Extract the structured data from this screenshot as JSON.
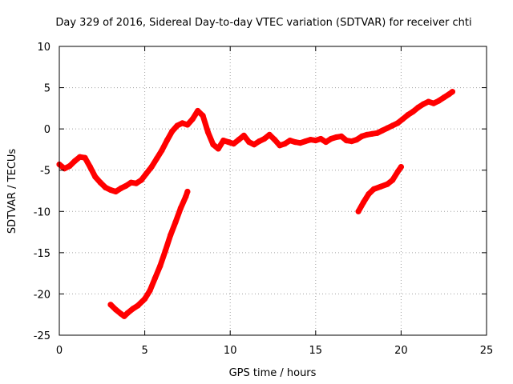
{
  "chart_data": {
    "type": "line",
    "title": "Day 329 of 2016, Sidereal Day-to-day VTEC variation (SDTVAR) for receiver chti",
    "xlabel": "GPS time / hours",
    "ylabel": "SDTVAR / TECUs",
    "xlim": [
      0,
      25
    ],
    "ylim": [
      -25,
      10
    ],
    "xticks": [
      0,
      5,
      10,
      15,
      20,
      25
    ],
    "yticks": [
      -25,
      -20,
      -15,
      -10,
      -5,
      0,
      5,
      10
    ],
    "grid": true,
    "series_color": "#ff0000",
    "series": [
      {
        "name": "segment-1",
        "x": [
          0,
          0.3,
          0.6,
          0.9,
          1.2,
          1.5,
          1.8,
          2.1,
          2.4,
          2.7,
          3.0,
          3.3,
          3.6,
          3.9,
          4.2,
          4.5,
          4.8,
          5.1,
          5.4,
          5.7,
          6.0,
          6.3,
          6.6,
          6.9,
          7.2,
          7.5,
          7.8,
          8.1,
          8.4,
          8.7,
          9.0,
          9.3,
          9.6,
          9.9,
          10.2,
          10.5,
          10.8,
          11.1,
          11.4,
          11.7,
          12.0,
          12.3,
          12.6,
          12.9,
          13.2,
          13.5,
          13.8,
          14.1,
          14.4,
          14.7,
          15.0,
          15.3,
          15.6,
          15.9,
          16.2,
          16.5,
          16.8,
          17.1,
          17.4,
          17.7,
          18.0,
          18.3,
          18.6,
          18.9,
          19.2,
          19.5,
          19.8,
          20.1,
          20.4,
          20.7,
          21.0,
          21.3,
          21.6,
          21.9,
          22.2,
          22.5,
          22.8,
          23.0
        ],
        "y": [
          -4.3,
          -4.8,
          -4.5,
          -3.9,
          -3.4,
          -3.5,
          -4.6,
          -5.8,
          -6.5,
          -7.1,
          -7.4,
          -7.6,
          -7.2,
          -6.9,
          -6.5,
          -6.6,
          -6.2,
          -5.4,
          -4.6,
          -3.6,
          -2.6,
          -1.4,
          -0.3,
          0.4,
          0.7,
          0.5,
          1.2,
          2.2,
          1.6,
          -0.4,
          -1.9,
          -2.4,
          -1.4,
          -1.6,
          -1.8,
          -1.3,
          -0.8,
          -1.6,
          -1.9,
          -1.5,
          -1.2,
          -0.7,
          -1.3,
          -2.0,
          -1.8,
          -1.4,
          -1.6,
          -1.7,
          -1.5,
          -1.3,
          -1.4,
          -1.2,
          -1.6,
          -1.2,
          -1.0,
          -0.9,
          -1.4,
          -1.5,
          -1.3,
          -0.9,
          -0.7,
          -0.6,
          -0.5,
          -0.2,
          0.1,
          0.4,
          0.7,
          1.2,
          1.7,
          2.1,
          2.6,
          3.0,
          3.3,
          3.1,
          3.4,
          3.8,
          4.2,
          4.5
        ]
      },
      {
        "name": "segment-2",
        "x": [
          3.0,
          3.3,
          3.6,
          3.8,
          4.0,
          4.3,
          4.6,
          5.0,
          5.3,
          5.6,
          5.9,
          6.2,
          6.5,
          6.8,
          7.1,
          7.4,
          7.5
        ],
        "y": [
          -21.3,
          -21.9,
          -22.4,
          -22.7,
          -22.3,
          -21.8,
          -21.4,
          -20.6,
          -19.6,
          -18.1,
          -16.6,
          -14.8,
          -12.9,
          -11.3,
          -9.6,
          -8.2,
          -7.6
        ]
      },
      {
        "name": "segment-3",
        "x": [
          17.5,
          17.8,
          18.1,
          18.4,
          18.8,
          19.2,
          19.5,
          19.8,
          20.0
        ],
        "y": [
          -10.0,
          -8.9,
          -7.9,
          -7.3,
          -7.0,
          -6.7,
          -6.2,
          -5.2,
          -4.6
        ]
      }
    ]
  }
}
